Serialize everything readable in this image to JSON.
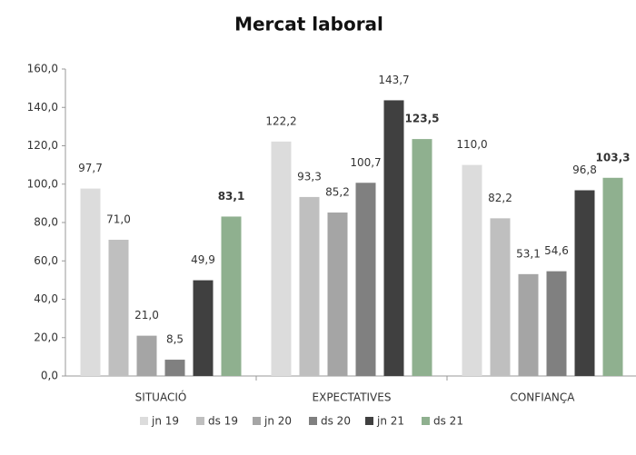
{
  "chart_data": {
    "type": "bar",
    "title": "Mercat laboral",
    "categories": [
      "SITUACIÓ",
      "EXPECTATIVES",
      "CONFIANÇA"
    ],
    "series": [
      {
        "name": "jn 19",
        "color": "#dcdcdc",
        "values": [
          97.7,
          122.2,
          110.0
        ],
        "value_labels": [
          "97,7",
          "122,2",
          "110,0"
        ]
      },
      {
        "name": "ds 19",
        "color": "#bfbfbf",
        "values": [
          71.0,
          93.3,
          82.2
        ],
        "value_labels": [
          "71,0",
          "93,3",
          "82,2"
        ]
      },
      {
        "name": "jn 20",
        "color": "#a5a5a5",
        "values": [
          21.0,
          85.2,
          53.1
        ],
        "value_labels": [
          "21,0",
          "85,2",
          "53,1"
        ]
      },
      {
        "name": "ds 20",
        "color": "#808080",
        "values": [
          8.5,
          100.7,
          54.6
        ],
        "value_labels": [
          "8,5",
          "100,7",
          "54,6"
        ]
      },
      {
        "name": "jn 21",
        "color": "#404040",
        "values": [
          49.9,
          143.7,
          96.8
        ],
        "value_labels": [
          "49,9",
          "143,7",
          "96,8"
        ]
      },
      {
        "name": "ds 21",
        "color": "#8fb08f",
        "values": [
          83.1,
          123.5,
          103.3
        ],
        "value_labels": [
          "83,1",
          "123,5",
          "103,3"
        ]
      }
    ],
    "ylim": [
      0,
      160
    ],
    "yticks": [
      {
        "value": 0,
        "label": "0,0"
      },
      {
        "value": 20,
        "label": "20,0"
      },
      {
        "value": 40,
        "label": "40,0"
      },
      {
        "value": 60,
        "label": "60,0"
      },
      {
        "value": 80,
        "label": "80,0"
      },
      {
        "value": 100,
        "label": "100,0"
      },
      {
        "value": 120,
        "label": "120,0"
      },
      {
        "value": 140,
        "label": "140,0"
      },
      {
        "value": 160,
        "label": "160,0"
      }
    ],
    "legend": "bottom"
  }
}
